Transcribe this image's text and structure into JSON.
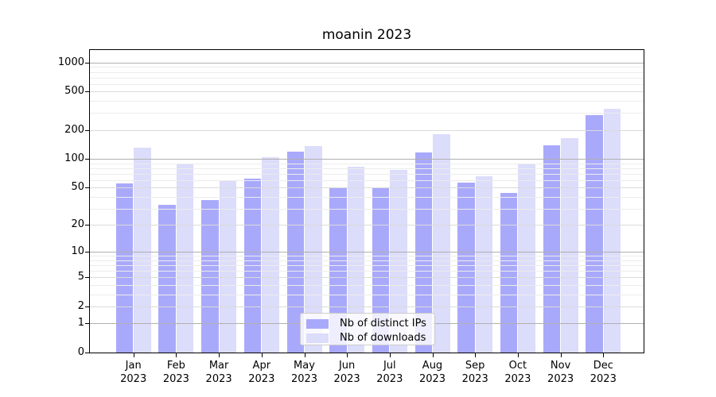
{
  "title": "moanin 2023",
  "chart_data": {
    "type": "bar",
    "title": "moanin 2023",
    "xlabel": "",
    "ylabel": "",
    "y_scale": "log10(1+x)",
    "ylim": [
      0,
      1350
    ],
    "grid": true,
    "legend_position": "bottom-center",
    "categories": [
      "Jan 2023",
      "Feb 2023",
      "Mar 2023",
      "Apr 2023",
      "May 2023",
      "Jun 2023",
      "Jul 2023",
      "Aug 2023",
      "Sep 2023",
      "Oct 2023",
      "Nov 2023",
      "Dec 2023"
    ],
    "series": [
      {
        "name": "Nb of distinct IPs",
        "color": "#a9a9fb",
        "values": [
          55,
          33,
          37,
          62,
          120,
          50,
          49,
          117,
          56,
          44,
          139,
          285
        ]
      },
      {
        "name": "Nb of downloads",
        "color": "#dcdcfb",
        "values": [
          130,
          88,
          60,
          105,
          135,
          82,
          76,
          180,
          66,
          89,
          166,
          330
        ]
      }
    ],
    "y_tick_values": [
      0,
      1,
      2,
      5,
      10,
      20,
      50,
      100,
      200,
      500,
      1000
    ],
    "y_tick_labels": [
      "0",
      "1",
      "2",
      "5",
      "10",
      "20",
      "50",
      "100",
      "200",
      "500",
      "1000"
    ],
    "minor_grid_values": [
      3,
      4,
      6,
      7,
      8,
      9,
      30,
      40,
      60,
      70,
      80,
      90,
      300,
      400,
      600,
      700,
      800,
      900
    ]
  },
  "colors": {
    "bar_distinct_ips": "#a9a9fb",
    "bar_downloads": "#dcdcfb",
    "grid_decade": "#b0b0b0",
    "grid_labeled": "#dbdbdb",
    "grid_minor": "#ececec",
    "axis": "#000000",
    "legend_border": "#cccccc"
  }
}
